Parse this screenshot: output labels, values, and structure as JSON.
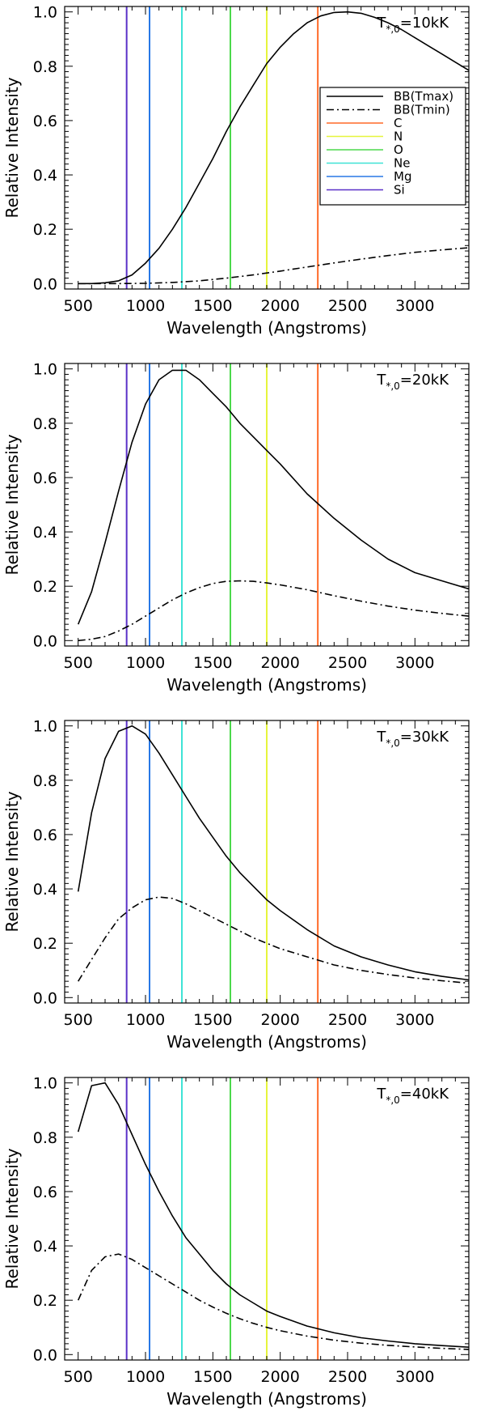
{
  "chart_data": [
    {
      "type": "line",
      "temperature_label": {
        "prefix": "T",
        "subscript": "*,0",
        "value": "=10kK"
      },
      "xlabel": "Wavelength (Angstroms)",
      "ylabel": "Relative Intensity",
      "xlim": [
        400,
        3400
      ],
      "ylim": [
        -0.02,
        1.02
      ],
      "x_ticks": [
        500,
        1000,
        1500,
        2000,
        2500,
        3000
      ],
      "y_ticks": [
        0.0,
        0.2,
        0.4,
        0.6,
        0.8,
        1.0
      ],
      "x_tick_labels": [
        "500",
        "1000",
        "1500",
        "2000",
        "2500",
        "3000"
      ],
      "y_tick_labels": [
        "0.0",
        "0.2",
        "0.4",
        "0.6",
        "0.8",
        "1.0"
      ],
      "show_legend": true,
      "legend_position": "top-right",
      "series": [
        {
          "name": "BB(Tmax)",
          "style": "solid",
          "color": "#000000",
          "x": [
            500,
            600,
            700,
            800,
            900,
            1000,
            1100,
            1200,
            1300,
            1400,
            1500,
            1600,
            1700,
            1800,
            1900,
            2000,
            2100,
            2200,
            2300,
            2400,
            2500,
            2600,
            2700,
            2800,
            2900,
            3000,
            3100,
            3200,
            3300,
            3400
          ],
          "y": [
            0.0,
            0.0,
            0.003,
            0.01,
            0.032,
            0.075,
            0.13,
            0.2,
            0.28,
            0.37,
            0.46,
            0.56,
            0.65,
            0.73,
            0.81,
            0.87,
            0.92,
            0.96,
            0.985,
            0.998,
            1.0,
            0.995,
            0.98,
            0.96,
            0.935,
            0.905,
            0.875,
            0.845,
            0.815,
            0.785
          ]
        },
        {
          "name": "BB(Tmin)",
          "style": "dashdot",
          "color": "#000000",
          "x": [
            500,
            800,
            1000,
            1200,
            1400,
            1600,
            1800,
            2000,
            2200,
            2400,
            2600,
            2800,
            3000,
            3200,
            3400
          ],
          "y": [
            0.0,
            0.0,
            0.001,
            0.004,
            0.01,
            0.02,
            0.032,
            0.046,
            0.061,
            0.076,
            0.09,
            0.103,
            0.115,
            0.124,
            0.132
          ]
        }
      ],
      "lines": [
        {
          "element": "C",
          "wavelength": 2279,
          "color": "#ff6a28"
        },
        {
          "element": "N",
          "wavelength": 1900,
          "color": "#e6f53c"
        },
        {
          "element": "O",
          "wavelength": 1630,
          "color": "#4cd94c"
        },
        {
          "element": "Ne",
          "wavelength": 1270,
          "color": "#3fe3d6"
        },
        {
          "element": "Mg",
          "wavelength": 1030,
          "color": "#2878e6"
        },
        {
          "element": "Si",
          "wavelength": 860,
          "color": "#5a30c8"
        }
      ]
    },
    {
      "type": "line",
      "temperature_label": {
        "prefix": "T",
        "subscript": "*,0",
        "value": "=20kK"
      },
      "xlabel": "Wavelength (Angstroms)",
      "ylabel": "Relative Intensity",
      "xlim": [
        400,
        3400
      ],
      "ylim": [
        -0.02,
        1.02
      ],
      "x_ticks": [
        500,
        1000,
        1500,
        2000,
        2500,
        3000
      ],
      "y_ticks": [
        0.0,
        0.2,
        0.4,
        0.6,
        0.8,
        1.0
      ],
      "x_tick_labels": [
        "500",
        "1000",
        "1500",
        "2000",
        "2500",
        "3000"
      ],
      "y_tick_labels": [
        "0.0",
        "0.2",
        "0.4",
        "0.6",
        "0.8",
        "1.0"
      ],
      "show_legend": false,
      "series": [
        {
          "name": "BB(Tmax)",
          "style": "solid",
          "color": "#000000",
          "x": [
            500,
            600,
            700,
            800,
            900,
            1000,
            1100,
            1200,
            1300,
            1400,
            1500,
            1600,
            1700,
            1800,
            1900,
            2000,
            2200,
            2400,
            2600,
            2800,
            3000,
            3200,
            3400
          ],
          "y": [
            0.06,
            0.18,
            0.36,
            0.55,
            0.73,
            0.87,
            0.96,
            0.995,
            0.995,
            0.96,
            0.91,
            0.86,
            0.8,
            0.75,
            0.7,
            0.65,
            0.54,
            0.45,
            0.37,
            0.3,
            0.25,
            0.22,
            0.19
          ]
        },
        {
          "name": "BB(Tmin)",
          "style": "dashdot",
          "color": "#000000",
          "x": [
            500,
            600,
            700,
            800,
            900,
            1000,
            1100,
            1200,
            1300,
            1400,
            1500,
            1600,
            1700,
            1800,
            1900,
            2000,
            2200,
            2400,
            2600,
            2800,
            3000,
            3200,
            3400
          ],
          "y": [
            0.0,
            0.005,
            0.015,
            0.035,
            0.06,
            0.09,
            0.12,
            0.15,
            0.175,
            0.195,
            0.21,
            0.218,
            0.22,
            0.218,
            0.212,
            0.205,
            0.187,
            0.165,
            0.145,
            0.127,
            0.112,
            0.1,
            0.09
          ]
        }
      ],
      "lines": [
        {
          "element": "C",
          "wavelength": 2279,
          "color": "#ff6a28"
        },
        {
          "element": "N",
          "wavelength": 1900,
          "color": "#e6f53c"
        },
        {
          "element": "O",
          "wavelength": 1630,
          "color": "#4cd94c"
        },
        {
          "element": "Ne",
          "wavelength": 1270,
          "color": "#3fe3d6"
        },
        {
          "element": "Mg",
          "wavelength": 1030,
          "color": "#2878e6"
        },
        {
          "element": "Si",
          "wavelength": 860,
          "color": "#5a30c8"
        }
      ]
    },
    {
      "type": "line",
      "temperature_label": {
        "prefix": "T",
        "subscript": "*,0",
        "value": "=30kK"
      },
      "xlabel": "Wavelength (Angstroms)",
      "ylabel": "Relative Intensity",
      "xlim": [
        400,
        3400
      ],
      "ylim": [
        -0.02,
        1.02
      ],
      "x_ticks": [
        500,
        1000,
        1500,
        2000,
        2500,
        3000
      ],
      "y_ticks": [
        0.0,
        0.2,
        0.4,
        0.6,
        0.8,
        1.0
      ],
      "x_tick_labels": [
        "500",
        "1000",
        "1500",
        "2000",
        "2500",
        "3000"
      ],
      "y_tick_labels": [
        "0.0",
        "0.2",
        "0.4",
        "0.6",
        "0.8",
        "1.0"
      ],
      "show_legend": false,
      "series": [
        {
          "name": "BB(Tmax)",
          "style": "solid",
          "color": "#000000",
          "x": [
            500,
            600,
            700,
            800,
            900,
            1000,
            1100,
            1200,
            1300,
            1400,
            1500,
            1600,
            1700,
            1800,
            1900,
            2000,
            2200,
            2400,
            2600,
            2800,
            3000,
            3200,
            3400
          ],
          "y": [
            0.39,
            0.68,
            0.88,
            0.98,
            1.0,
            0.97,
            0.9,
            0.82,
            0.74,
            0.66,
            0.59,
            0.52,
            0.46,
            0.41,
            0.36,
            0.32,
            0.25,
            0.19,
            0.15,
            0.12,
            0.095,
            0.078,
            0.065
          ]
        },
        {
          "name": "BB(Tmin)",
          "style": "dashdot",
          "color": "#000000",
          "x": [
            500,
            600,
            700,
            800,
            900,
            1000,
            1100,
            1200,
            1300,
            1400,
            1500,
            1600,
            1700,
            1800,
            1900,
            2000,
            2200,
            2400,
            2600,
            2800,
            3000,
            3200,
            3400
          ],
          "y": [
            0.06,
            0.14,
            0.22,
            0.29,
            0.33,
            0.36,
            0.37,
            0.365,
            0.345,
            0.32,
            0.295,
            0.27,
            0.245,
            0.22,
            0.2,
            0.18,
            0.15,
            0.12,
            0.1,
            0.085,
            0.072,
            0.062,
            0.053
          ]
        }
      ],
      "lines": [
        {
          "element": "C",
          "wavelength": 2279,
          "color": "#ff6a28"
        },
        {
          "element": "N",
          "wavelength": 1900,
          "color": "#e6f53c"
        },
        {
          "element": "O",
          "wavelength": 1630,
          "color": "#4cd94c"
        },
        {
          "element": "Ne",
          "wavelength": 1270,
          "color": "#3fe3d6"
        },
        {
          "element": "Mg",
          "wavelength": 1030,
          "color": "#2878e6"
        },
        {
          "element": "Si",
          "wavelength": 860,
          "color": "#5a30c8"
        }
      ]
    },
    {
      "type": "line",
      "temperature_label": {
        "prefix": "T",
        "subscript": "*,0",
        "value": "=40kK"
      },
      "xlabel": "Wavelength (Angstroms)",
      "ylabel": "Relative Intensity",
      "xlim": [
        400,
        3400
      ],
      "ylim": [
        -0.02,
        1.02
      ],
      "x_ticks": [
        500,
        1000,
        1500,
        2000,
        2500,
        3000
      ],
      "y_ticks": [
        0.0,
        0.2,
        0.4,
        0.6,
        0.8,
        1.0
      ],
      "x_tick_labels": [
        "500",
        "1000",
        "1500",
        "2000",
        "2500",
        "3000"
      ],
      "y_tick_labels": [
        "0.0",
        "0.2",
        "0.4",
        "0.6",
        "0.8",
        "1.0"
      ],
      "show_legend": false,
      "series": [
        {
          "name": "BB(Tmax)",
          "style": "solid",
          "color": "#000000",
          "x": [
            500,
            600,
            700,
            800,
            900,
            1000,
            1100,
            1200,
            1300,
            1400,
            1500,
            1600,
            1700,
            1800,
            1900,
            2000,
            2200,
            2400,
            2600,
            2800,
            3000,
            3200,
            3400
          ],
          "y": [
            0.82,
            0.99,
            1.0,
            0.92,
            0.81,
            0.7,
            0.6,
            0.51,
            0.43,
            0.37,
            0.31,
            0.26,
            0.22,
            0.19,
            0.16,
            0.14,
            0.105,
            0.08,
            0.062,
            0.05,
            0.04,
            0.033,
            0.027
          ]
        },
        {
          "name": "BB(Tmin)",
          "style": "dashdot",
          "color": "#000000",
          "x": [
            500,
            600,
            700,
            800,
            900,
            1000,
            1100,
            1200,
            1300,
            1400,
            1500,
            1600,
            1700,
            1800,
            1900,
            2000,
            2200,
            2400,
            2600,
            2800,
            3000,
            3200,
            3400
          ],
          "y": [
            0.2,
            0.31,
            0.36,
            0.37,
            0.35,
            0.32,
            0.29,
            0.26,
            0.23,
            0.2,
            0.175,
            0.152,
            0.132,
            0.115,
            0.1,
            0.088,
            0.068,
            0.053,
            0.042,
            0.034,
            0.028,
            0.023,
            0.019
          ]
        }
      ],
      "lines": [
        {
          "element": "C",
          "wavelength": 2279,
          "color": "#ff6a28"
        },
        {
          "element": "N",
          "wavelength": 1900,
          "color": "#e6f53c"
        },
        {
          "element": "O",
          "wavelength": 1630,
          "color": "#4cd94c"
        },
        {
          "element": "Ne",
          "wavelength": 1270,
          "color": "#3fe3d6"
        },
        {
          "element": "Mg",
          "wavelength": 1030,
          "color": "#2878e6"
        },
        {
          "element": "Si",
          "wavelength": 860,
          "color": "#5a30c8"
        }
      ]
    }
  ]
}
